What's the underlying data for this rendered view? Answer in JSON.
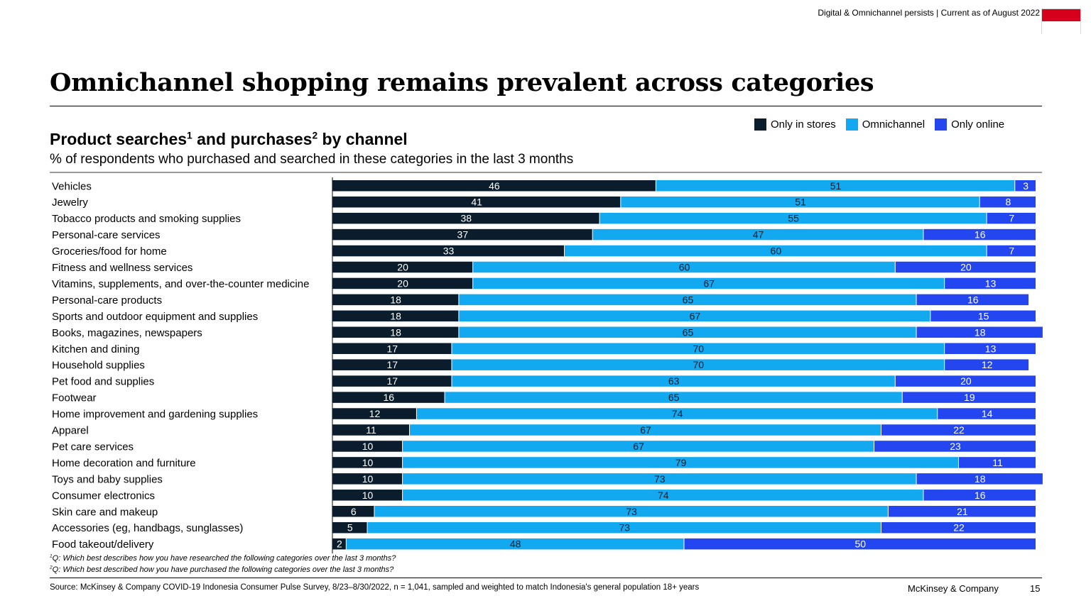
{
  "header": {
    "tagline": "Digital & Omnichannel persists | Current as of August 2022",
    "title": "Omnichannel shopping remains prevalent across categories"
  },
  "colors": {
    "stores": "#0b1d2c",
    "omni": "#13a9f0",
    "online": "#2346f0",
    "flag_red": "#d6001c"
  },
  "chart_data": {
    "type": "bar",
    "orientation": "horizontal",
    "stacked": true,
    "title_main": "Product searches",
    "title_fn1": "1",
    "title_mid": " and purchases",
    "title_fn2": "2",
    "title_end": " by channel",
    "subtitle": "% of respondents who purchased and searched in these categories in the last 3 months",
    "legend": [
      "Only in stores",
      "Omnichannel",
      "Only online"
    ],
    "categories": [
      "Vehicles",
      "Jewelry",
      "Tobacco products and smoking supplies",
      "Personal-care services",
      "Groceries/food for home",
      "Fitness and wellness services",
      "Vitamins, supplements, and over-the-counter medicine",
      "Personal-care products",
      "Sports and outdoor equipment and supplies",
      "Books, magazines, newspapers",
      "Kitchen and dining",
      "Household supplies",
      "Pet food and supplies",
      "Footwear",
      "Home improvement and gardening supplies",
      "Apparel",
      "Pet care services",
      "Home decoration and furniture",
      "Toys and baby supplies",
      "Consumer electronics",
      "Skin care and makeup",
      "Accessories (eg, handbags, sunglasses)",
      "Food takeout/delivery"
    ],
    "series": [
      {
        "name": "Only in stores",
        "values": [
          46,
          41,
          38,
          37,
          33,
          20,
          20,
          18,
          18,
          18,
          17,
          17,
          17,
          16,
          12,
          11,
          10,
          10,
          10,
          10,
          6,
          5,
          2
        ]
      },
      {
        "name": "Omnichannel",
        "values": [
          51,
          51,
          55,
          47,
          60,
          60,
          67,
          65,
          67,
          65,
          70,
          70,
          63,
          65,
          74,
          67,
          67,
          79,
          73,
          74,
          73,
          73,
          48
        ]
      },
      {
        "name": "Only online",
        "values": [
          3,
          8,
          7,
          16,
          7,
          20,
          13,
          16,
          15,
          18,
          13,
          12,
          20,
          19,
          14,
          22,
          23,
          11,
          18,
          16,
          21,
          22,
          50
        ]
      }
    ],
    "xlim": [
      0,
      100
    ]
  },
  "footnotes": {
    "fn1_mark": "1",
    "fn1_text": "Q: Which best describes how you have researched the following categories over the last 3 months?",
    "fn2_mark": "2",
    "fn2_text": "Q: Which best described how you have purchased the following categories over the last 3 months?"
  },
  "footer": {
    "source": "Source: McKinsey & Company COVID-19 Indonesia Consumer Pulse Survey, 8/23–8/30/2022, n = 1,041, sampled and weighted to match Indonesia's general population 18+ years",
    "brand": "McKinsey & Company",
    "page": "15"
  }
}
